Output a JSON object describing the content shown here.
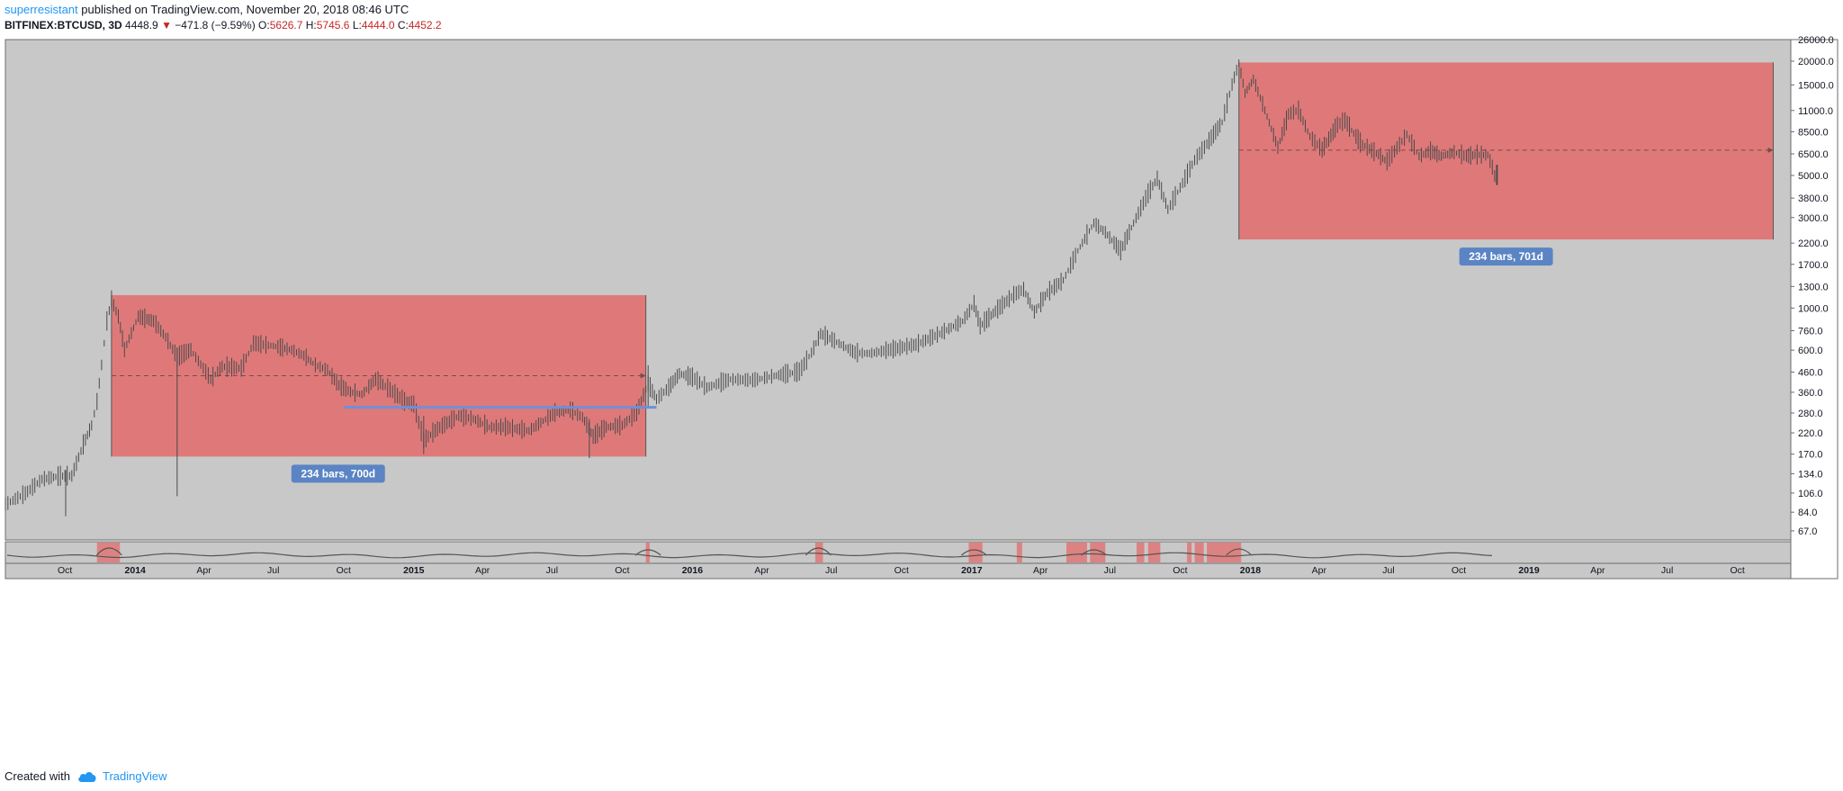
{
  "header": {
    "author": "superresistant",
    "published_text": "published on TradingView.com, November 20, 2018 08:46 UTC",
    "symbol": "BITFINEX:BTCUSD, 3D",
    "last": "4448.9",
    "change": "−471.8 (−9.59%)",
    "o_label": "O:",
    "o_value": "5626.7",
    "h_label": "H:",
    "h_value": "5745.6",
    "l_label": "L:",
    "l_value": "4444.0",
    "c_label": "C:",
    "c_value": "4452.2"
  },
  "footer": {
    "created_with": "Created with",
    "brand": "TradingView"
  },
  "colors": {
    "background": "#c8c8c8",
    "candle": "#4a4a4a",
    "range_box": "#e07575",
    "label_bg": "#5b84c4",
    "support_line": "#6f8fd6",
    "brand": "#2196f3",
    "negative": "#c62828"
  },
  "chart_data": {
    "type": "line",
    "scale": "log",
    "ylim": [
      60,
      26000
    ],
    "xlim": [
      "2013-07-15",
      "2019-12-10"
    ],
    "y_ticks": [
      67,
      84,
      106,
      134,
      170,
      220,
      280,
      360,
      460,
      600,
      760,
      1000,
      1300,
      1700,
      2200,
      3000,
      3800,
      5000,
      6500,
      8500,
      11000,
      15000,
      20000,
      26000
    ],
    "y_tick_labels": [
      "67.0",
      "84.0",
      "106.0",
      "134.0",
      "170.0",
      "220.0",
      "280.0",
      "360.0",
      "460.0",
      "600.0",
      "760.0",
      "1000.0",
      "1300.0",
      "1700.0",
      "2200.0",
      "3000.0",
      "3800.0",
      "5000.0",
      "6500.0",
      "8500.0",
      "11000.0",
      "15000.0",
      "20000.0",
      "26000.0"
    ],
    "x_ticks": [
      {
        "date": "2013-10-01",
        "label": "Oct",
        "bold": false
      },
      {
        "date": "2014-01-01",
        "label": "2014",
        "bold": true
      },
      {
        "date": "2014-04-01",
        "label": "Apr",
        "bold": false
      },
      {
        "date": "2014-07-01",
        "label": "Jul",
        "bold": false
      },
      {
        "date": "2014-10-01",
        "label": "Oct",
        "bold": false
      },
      {
        "date": "2015-01-01",
        "label": "2015",
        "bold": true
      },
      {
        "date": "2015-04-01",
        "label": "Apr",
        "bold": false
      },
      {
        "date": "2015-07-01",
        "label": "Jul",
        "bold": false
      },
      {
        "date": "2015-10-01",
        "label": "Oct",
        "bold": false
      },
      {
        "date": "2016-01-01",
        "label": "2016",
        "bold": true
      },
      {
        "date": "2016-04-01",
        "label": "Apr",
        "bold": false
      },
      {
        "date": "2016-07-01",
        "label": "Jul",
        "bold": false
      },
      {
        "date": "2016-10-01",
        "label": "Oct",
        "bold": false
      },
      {
        "date": "2017-01-01",
        "label": "2017",
        "bold": true
      },
      {
        "date": "2017-04-01",
        "label": "Apr",
        "bold": false
      },
      {
        "date": "2017-07-01",
        "label": "Jul",
        "bold": false
      },
      {
        "date": "2017-10-01",
        "label": "Oct",
        "bold": false
      },
      {
        "date": "2018-01-01",
        "label": "2018",
        "bold": true
      },
      {
        "date": "2018-04-01",
        "label": "Apr",
        "bold": false
      },
      {
        "date": "2018-07-01",
        "label": "Jul",
        "bold": false
      },
      {
        "date": "2018-10-01",
        "label": "Oct",
        "bold": false
      },
      {
        "date": "2019-01-01",
        "label": "2019",
        "bold": true
      },
      {
        "date": "2019-04-01",
        "label": "Apr",
        "bold": false
      },
      {
        "date": "2019-07-01",
        "label": "Jul",
        "bold": false
      },
      {
        "date": "2019-10-01",
        "label": "Oct",
        "bold": false
      }
    ],
    "price_path": [
      [
        "2013-07-15",
        92
      ],
      [
        "2013-08-10",
        105
      ],
      [
        "2013-09-01",
        125
      ],
      [
        "2013-09-25",
        130
      ],
      [
        "2013-10-10",
        130
      ],
      [
        "2013-10-25",
        190
      ],
      [
        "2013-11-05",
        240
      ],
      [
        "2013-11-12",
        320
      ],
      [
        "2013-11-18",
        500
      ],
      [
        "2013-11-25",
        850
      ],
      [
        "2013-12-01",
        1100
      ],
      [
        "2013-12-10",
        900
      ],
      [
        "2013-12-18",
        600
      ],
      [
        "2014-01-05",
        900
      ],
      [
        "2014-01-25",
        850
      ],
      [
        "2014-02-10",
        700
      ],
      [
        "2014-02-25",
        550
      ],
      [
        "2014-03-15",
        600
      ],
      [
        "2014-04-10",
        420
      ],
      [
        "2014-04-25",
        490
      ],
      [
        "2014-05-20",
        480
      ],
      [
        "2014-06-05",
        650
      ],
      [
        "2014-07-01",
        630
      ],
      [
        "2014-07-25",
        600
      ],
      [
        "2014-08-10",
        560
      ],
      [
        "2014-08-25",
        500
      ],
      [
        "2014-09-10",
        470
      ],
      [
        "2014-09-25",
        390
      ],
      [
        "2014-10-10",
        360
      ],
      [
        "2014-10-25",
        350
      ],
      [
        "2014-11-12",
        420
      ],
      [
        "2014-12-01",
        370
      ],
      [
        "2014-12-20",
        320
      ],
      [
        "2015-01-01",
        310
      ],
      [
        "2015-01-14",
        200
      ],
      [
        "2015-02-01",
        230
      ],
      [
        "2015-03-01",
        270
      ],
      [
        "2015-03-20",
        260
      ],
      [
        "2015-04-10",
        235
      ],
      [
        "2015-05-01",
        235
      ],
      [
        "2015-06-01",
        225
      ],
      [
        "2015-07-05",
        280
      ],
      [
        "2015-07-25",
        290
      ],
      [
        "2015-08-10",
        265
      ],
      [
        "2015-08-24",
        210
      ],
      [
        "2015-09-10",
        235
      ],
      [
        "2015-10-01",
        240
      ],
      [
        "2015-10-20",
        280
      ],
      [
        "2015-11-04",
        400
      ],
      [
        "2015-11-15",
        330
      ],
      [
        "2015-12-01",
        380
      ],
      [
        "2015-12-15",
        450
      ],
      [
        "2016-01-01",
        430
      ],
      [
        "2016-01-20",
        380
      ],
      [
        "2016-02-20",
        420
      ],
      [
        "2016-03-20",
        415
      ],
      [
        "2016-04-20",
        440
      ],
      [
        "2016-05-20",
        460
      ],
      [
        "2016-06-05",
        580
      ],
      [
        "2016-06-17",
        730
      ],
      [
        "2016-07-05",
        670
      ],
      [
        "2016-08-01",
        580
      ],
      [
        "2016-08-20",
        575
      ],
      [
        "2016-09-20",
        605
      ],
      [
        "2016-10-20",
        640
      ],
      [
        "2016-11-20",
        730
      ],
      [
        "2016-12-20",
        850
      ],
      [
        "2017-01-04",
        1050
      ],
      [
        "2017-01-12",
        800
      ],
      [
        "2017-02-01",
        960
      ],
      [
        "2017-02-25",
        1170
      ],
      [
        "2017-03-10",
        1250
      ],
      [
        "2017-03-24",
        950
      ],
      [
        "2017-04-10",
        1200
      ],
      [
        "2017-05-01",
        1400
      ],
      [
        "2017-05-20",
        2000
      ],
      [
        "2017-06-10",
        2800
      ],
      [
        "2017-06-25",
        2500
      ],
      [
        "2017-07-15",
        2000
      ],
      [
        "2017-08-01",
        2800
      ],
      [
        "2017-08-20",
        4000
      ],
      [
        "2017-09-01",
        4800
      ],
      [
        "2017-09-15",
        3300
      ],
      [
        "2017-10-01",
        4300
      ],
      [
        "2017-10-20",
        6000
      ],
      [
        "2017-11-05",
        7300
      ],
      [
        "2017-11-25",
        9500
      ],
      [
        "2017-12-08",
        15000
      ],
      [
        "2017-12-17",
        19500
      ],
      [
        "2017-12-25",
        13500
      ],
      [
        "2018-01-05",
        16000
      ],
      [
        "2018-01-20",
        11000
      ],
      [
        "2018-02-06",
        7000
      ],
      [
        "2018-02-20",
        10500
      ],
      [
        "2018-03-05",
        11000
      ],
      [
        "2018-03-20",
        8000
      ],
      [
        "2018-04-05",
        6800
      ],
      [
        "2018-04-25",
        9200
      ],
      [
        "2018-05-05",
        9700
      ],
      [
        "2018-05-25",
        7400
      ],
      [
        "2018-06-15",
        6500
      ],
      [
        "2018-06-29",
        5900
      ],
      [
        "2018-07-25",
        8200
      ],
      [
        "2018-08-10",
        6300
      ],
      [
        "2018-08-25",
        6700
      ],
      [
        "2018-09-08",
        6300
      ],
      [
        "2018-09-25",
        6600
      ],
      [
        "2018-10-11",
        6300
      ],
      [
        "2018-10-25",
        6400
      ],
      [
        "2018-11-08",
        6400
      ],
      [
        "2018-11-14",
        5500
      ],
      [
        "2018-11-20",
        4450
      ]
    ],
    "wicks": [
      {
        "date": "2014-02-25",
        "high": 620,
        "low": 102
      },
      {
        "date": "2013-10-02",
        "high": 140,
        "low": 80
      },
      {
        "date": "2015-08-19",
        "high": 260,
        "low": 162
      },
      {
        "date": "2015-01-14",
        "high": 270,
        "low": 170
      },
      {
        "date": "2015-11-04",
        "high": 500,
        "low": 300
      }
    ],
    "ranges": [
      {
        "start": "2013-12-01",
        "end": "2015-11-01",
        "top": 1170,
        "bottom": 165,
        "mid": 440,
        "label": "234 bars, 700d"
      },
      {
        "start": "2017-12-17",
        "end": "2019-11-17",
        "top": 19700,
        "bottom": 2300,
        "mid": 6800,
        "label": "234 bars, 701d"
      }
    ],
    "support_line": {
      "start": "2014-10-01",
      "end": "2015-11-15",
      "value": 300
    },
    "indicator_highlights": [
      [
        "2013-11-12",
        "2013-12-12"
      ],
      [
        "2015-11-01",
        "2015-11-06"
      ],
      [
        "2016-06-10",
        "2016-06-20"
      ],
      [
        "2016-12-28",
        "2017-01-15"
      ],
      [
        "2017-03-01",
        "2017-03-08"
      ],
      [
        "2017-05-05",
        "2017-06-01"
      ],
      [
        "2017-06-05",
        "2017-06-25"
      ],
      [
        "2017-08-05",
        "2017-08-15"
      ],
      [
        "2017-08-20",
        "2017-09-05"
      ],
      [
        "2017-10-10",
        "2017-10-16"
      ],
      [
        "2017-10-20",
        "2017-11-01"
      ],
      [
        "2017-11-05",
        "2017-12-20"
      ]
    ]
  }
}
